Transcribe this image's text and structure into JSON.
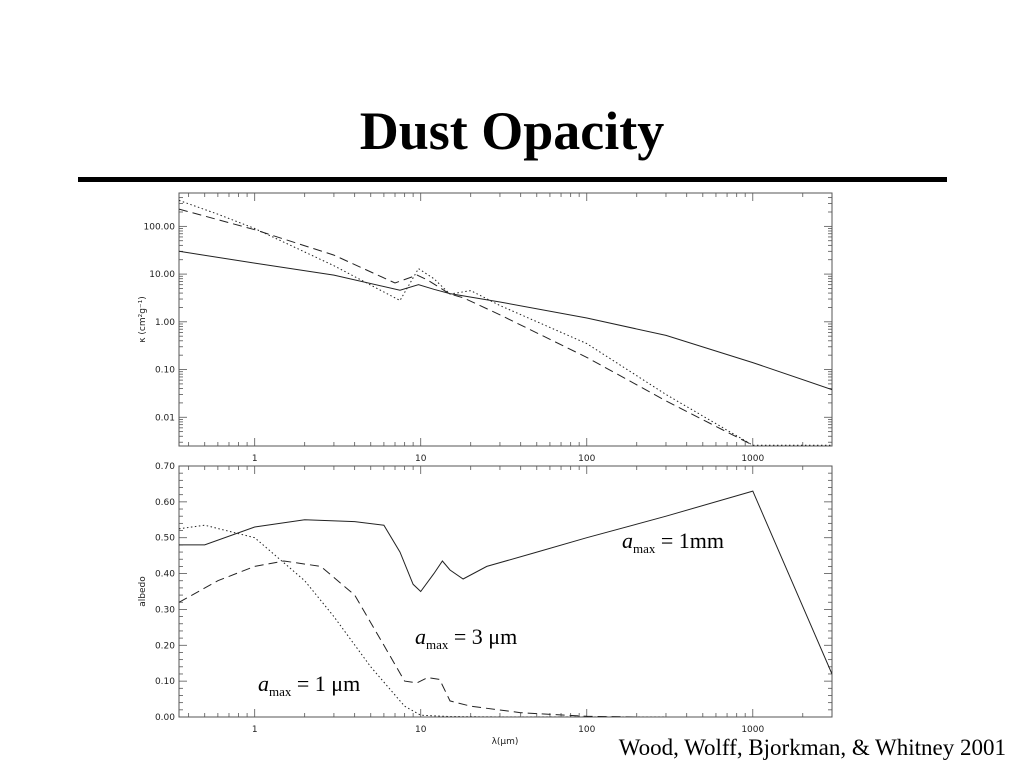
{
  "slide": {
    "title": "Dust Opacity",
    "credit": "Wood, Wolff, Bjorkman, & Whitney 2001"
  },
  "chart_data": [
    {
      "type": "line",
      "title": "",
      "xlabel": "",
      "ylabel": "κ (cm²g⁻¹)",
      "xscale": "log",
      "yscale": "log",
      "xlim": [
        0.35,
        3000
      ],
      "ylim": [
        0.0025,
        500
      ],
      "x_ticks": [
        1,
        10,
        100,
        1000
      ],
      "x_tick_labels": [
        "1",
        "10",
        "100",
        "1000"
      ],
      "y_ticks": [
        0.01,
        0.1,
        1,
        10,
        100
      ],
      "y_tick_labels": [
        "0.01",
        "0.10",
        "1.00",
        "10.00",
        "100.00"
      ],
      "series": [
        {
          "style": "solid",
          "x": [
            0.35,
            1,
            3,
            7.5,
            9.7,
            12,
            15,
            30,
            100,
            300,
            1000,
            3000
          ],
          "y": [
            30,
            17,
            9.5,
            4.6,
            6,
            4.8,
            3.9,
            2.6,
            1.2,
            0.52,
            0.14,
            0.038
          ]
        },
        {
          "style": "dashed",
          "x": [
            0.35,
            1,
            3,
            7,
            9.5,
            11,
            15,
            18,
            30,
            100,
            300,
            1000
          ],
          "y": [
            230,
            85,
            25,
            6.5,
            9.5,
            7.5,
            3.8,
            3.2,
            1.4,
            0.18,
            0.022,
            0.0026
          ]
        },
        {
          "style": "dotted",
          "x": [
            0.35,
            0.6,
            1,
            3,
            7.5,
            9.7,
            12,
            15,
            20,
            30,
            100,
            300,
            1000,
            3000
          ],
          "y": [
            350,
            180,
            90,
            15,
            2.8,
            13,
            8,
            3.8,
            4.5,
            2.2,
            0.35,
            0.03,
            0.0026,
            0.0026
          ]
        }
      ]
    },
    {
      "type": "line",
      "title": "",
      "xlabel": "λ(μm)",
      "ylabel": "albedo",
      "xscale": "log",
      "xlim": [
        0.35,
        3000
      ],
      "ylim": [
        0,
        0.7
      ],
      "x_ticks": [
        1,
        10,
        100,
        1000
      ],
      "x_tick_labels": [
        "1",
        "10",
        "100",
        "1000"
      ],
      "y_ticks": [
        0,
        0.1,
        0.2,
        0.3,
        0.4,
        0.5,
        0.6,
        0.7
      ],
      "y_tick_labels": [
        "0.00",
        "0.10",
        "0.20",
        "0.30",
        "0.40",
        "0.50",
        "0.60",
        "0.70"
      ],
      "series": [
        {
          "style": "solid",
          "label": "a_max = 1mm",
          "x": [
            0.35,
            0.5,
            1,
            2,
            4,
            6,
            7.5,
            9,
            10,
            12,
            13.5,
            15,
            18,
            25,
            50,
            100,
            300,
            1000,
            3000
          ],
          "y": [
            0.48,
            0.48,
            0.53,
            0.55,
            0.545,
            0.535,
            0.46,
            0.37,
            0.35,
            0.4,
            0.435,
            0.41,
            0.385,
            0.42,
            0.46,
            0.5,
            0.56,
            0.63,
            0.12
          ]
        },
        {
          "style": "dashed",
          "label": "a_max = 3μm",
          "x": [
            0.35,
            0.6,
            1,
            1.5,
            2.5,
            4,
            6,
            8,
            9.5,
            11,
            13,
            15,
            20,
            40,
            100,
            200
          ],
          "y": [
            0.32,
            0.38,
            0.42,
            0.435,
            0.42,
            0.34,
            0.2,
            0.1,
            0.095,
            0.11,
            0.105,
            0.045,
            0.03,
            0.012,
            0.002,
            0.0
          ]
        },
        {
          "style": "dotted",
          "label": "a_max = 1μm",
          "x": [
            0.35,
            0.5,
            1,
            2,
            3,
            5,
            8,
            10,
            15,
            30,
            100,
            300
          ],
          "y": [
            0.525,
            0.535,
            0.5,
            0.38,
            0.28,
            0.14,
            0.03,
            0.005,
            0.001,
            0.0,
            0.0,
            0.0
          ]
        }
      ],
      "annotations": [
        {
          "a": "a",
          "sub": "max",
          "rest": " = 1mm"
        },
        {
          "a": "a",
          "sub": "max",
          "rest": " = 3 μm"
        },
        {
          "a": "a",
          "sub": "max",
          "rest": " = 1 μm"
        }
      ]
    }
  ]
}
